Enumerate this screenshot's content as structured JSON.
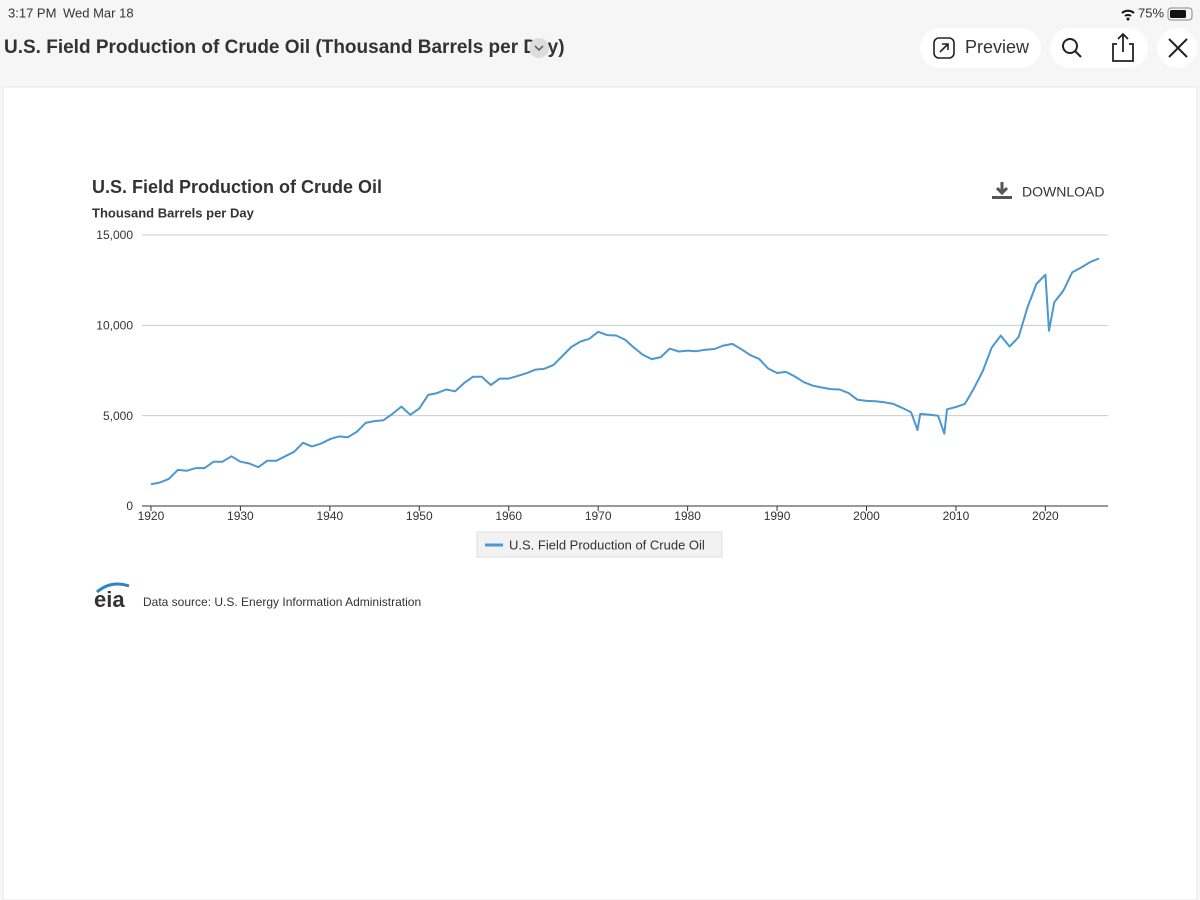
{
  "status_bar": {
    "time": "3:17 PM",
    "date": "Wed Mar 18",
    "battery": "75%"
  },
  "toolbar": {
    "title": "U.S. Field Production of Crude Oil (Thousand Barrels per Day)",
    "preview": "Preview"
  },
  "chart_data": {
    "type": "line",
    "title": "U.S. Field Production of Crude Oil",
    "subtitle": "Thousand Barrels per Day",
    "download": "DOWNLOAD",
    "logo": "eia",
    "source": "Data source: U.S. Energy Information Administration",
    "x": [
      1920,
      1921,
      1922,
      1923,
      1924,
      1925,
      1926,
      1927,
      1928,
      1929,
      1930,
      1931,
      1932,
      1933,
      1934,
      1935,
      1936,
      1937,
      1938,
      1939,
      1940,
      1941,
      1942,
      1943,
      1944,
      1945,
      1946,
      1947,
      1948,
      1949,
      1950,
      1951,
      1952,
      1953,
      1954,
      1955,
      1956,
      1957,
      1958,
      1959,
      1960,
      1961,
      1962,
      1963,
      1964,
      1965,
      1966,
      1967,
      1968,
      1969,
      1970,
      1971,
      1972,
      1973,
      1974,
      1975,
      1976,
      1977,
      1978,
      1979,
      1980,
      1981,
      1982,
      1983,
      1984,
      1985,
      1986,
      1987,
      1988,
      1989,
      1990,
      1991,
      1992,
      1993,
      1994,
      1995,
      1996,
      1997,
      1998,
      1999,
      2000,
      2001,
      2002,
      2003,
      2004,
      2005,
      2005.7,
      2006,
      2007,
      2008,
      2008.7,
      2009,
      2010,
      2011,
      2012,
      2013,
      2014,
      2015,
      2016,
      2017,
      2018,
      2019,
      2020,
      2020.4,
      2021,
      2022,
      2023,
      2024,
      2025,
      2026
    ],
    "series": [
      {
        "name": "U.S. Field Production of Crude Oil",
        "color": "#4a98cf",
        "values": [
          1200,
          1300,
          1500,
          2000,
          1950,
          2100,
          2100,
          2450,
          2450,
          2750,
          2450,
          2350,
          2150,
          2500,
          2500,
          2750,
          3000,
          3500,
          3300,
          3450,
          3700,
          3850,
          3800,
          4100,
          4600,
          4700,
          4750,
          5100,
          5500,
          5050,
          5400,
          6150,
          6250,
          6450,
          6350,
          6800,
          7150,
          7150,
          6700,
          7050,
          7050,
          7200,
          7350,
          7550,
          7600,
          7800,
          8300,
          8800,
          9100,
          9250,
          9640,
          9460,
          9440,
          9210,
          8770,
          8370,
          8130,
          8240,
          8710,
          8550,
          8600,
          8570,
          8650,
          8690,
          8880,
          8970,
          8680,
          8350,
          8140,
          7610,
          7360,
          7420,
          7170,
          6850,
          6660,
          6560,
          6470,
          6450,
          6250,
          5880,
          5820,
          5800,
          5740,
          5650,
          5430,
          5180,
          4200,
          5100,
          5060,
          5000,
          4000,
          5350,
          5480,
          5650,
          6500,
          7470,
          8760,
          9430,
          8830,
          9350,
          10990,
          12290,
          12800,
          9700,
          11280,
          11910,
          12930,
          13200,
          13500,
          13700
        ]
      }
    ],
    "xlim": [
      1919,
      2027
    ],
    "xticks": [
      1920,
      1930,
      1940,
      1950,
      1960,
      1970,
      1980,
      1990,
      2000,
      2010,
      2020
    ],
    "ylim": [
      0,
      15000
    ],
    "yticks": [
      0,
      {
        "value": 5000,
        "label": "5,000"
      },
      {
        "value": 10000,
        "label": "10,000"
      },
      {
        "value": 15000,
        "label": "15,000"
      }
    ],
    "grid": true
  }
}
